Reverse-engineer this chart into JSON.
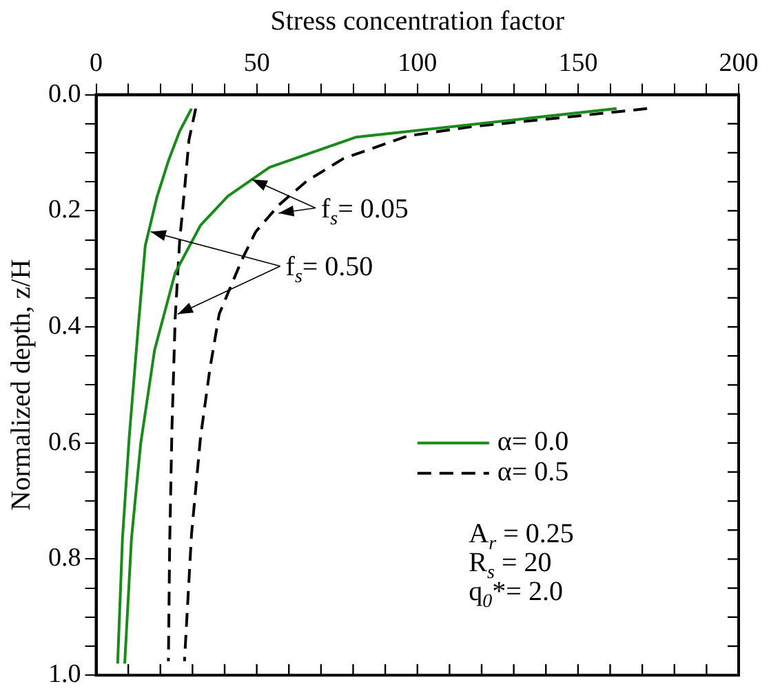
{
  "chart_data": {
    "type": "line",
    "xlabel": "Stress concentration factor",
    "ylabel": "Normalized depth, z/H",
    "xlim": [
      0,
      200
    ],
    "ylim": [
      1,
      0
    ],
    "xticks": [
      0,
      {
        "value": 10,
        "label": null
      },
      {
        "value": 20,
        "label": null
      },
      {
        "value": 30,
        "label": null
      },
      {
        "value": 40,
        "label": null
      },
      50,
      {
        "value": 60,
        "label": null
      },
      {
        "value": 70,
        "label": null
      },
      {
        "value": 80,
        "label": null
      },
      {
        "value": 90,
        "label": null
      },
      100,
      {
        "value": 110,
        "label": null
      },
      {
        "value": 120,
        "label": null
      },
      {
        "value": 130,
        "label": null
      },
      {
        "value": 140,
        "label": null
      },
      150,
      {
        "value": 160,
        "label": null
      },
      {
        "value": 170,
        "label": null
      },
      {
        "value": 180,
        "label": null
      },
      {
        "value": 190,
        "label": null
      },
      200
    ],
    "yticks": [
      {
        "value": 0,
        "label": "0.0"
      },
      {
        "value": 0.05,
        "label": null
      },
      {
        "value": 0.1,
        "label": null
      },
      {
        "value": 0.15,
        "label": null
      },
      {
        "value": 0.2,
        "label": "0.2"
      },
      {
        "value": 0.25,
        "label": null
      },
      {
        "value": 0.3,
        "label": null
      },
      {
        "value": 0.35,
        "label": null
      },
      {
        "value": 0.4,
        "label": "0.4"
      },
      {
        "value": 0.45,
        "label": null
      },
      {
        "value": 0.5,
        "label": null
      },
      {
        "value": 0.55,
        "label": null
      },
      {
        "value": 0.6,
        "label": "0.6"
      },
      {
        "value": 0.65,
        "label": null
      },
      {
        "value": 0.7,
        "label": null
      },
      {
        "value": 0.75,
        "label": null
      },
      {
        "value": 0.8,
        "label": "0.8"
      },
      {
        "value": 0.85,
        "label": null
      },
      {
        "value": 0.9,
        "label": null
      },
      {
        "value": 0.95,
        "label": null
      },
      {
        "value": 1,
        "label": "1.0"
      }
    ],
    "grid": false,
    "legend": "right",
    "marker": "none",
    "series": [
      {
        "name": "α= 0.0",
        "color": "#1a8a1a",
        "line_style": "solid",
        "x": [
          162,
          81,
          54,
          41,
          32.5,
          24.6,
          18.2,
          13.9,
          11,
          8.9
        ],
        "values": [
          0.024,
          0.073,
          0.125,
          0.175,
          0.225,
          0.307,
          0.44,
          0.6,
          0.765,
          0.98
        ]
      },
      {
        "color": "#1a8a1a",
        "line_style": "solid",
        "x": [
          29.7,
          26,
          22.5,
          18.9,
          15.3,
          13.2,
          10.3,
          8.2,
          6.7
        ],
        "values": [
          0.024,
          0.063,
          0.114,
          0.177,
          0.26,
          0.394,
          0.59,
          0.765,
          0.98
        ]
      },
      {
        "name": "α= 0.5",
        "color": "#000000",
        "line_style": "dashed",
        "x": [
          171.5,
          145.7,
          117,
          97,
          77,
          65.5,
          56.9,
          49.7,
          45.4,
          38.3,
          35.4,
          32.5,
          29.7,
          27.5
        ],
        "values": [
          0.024,
          0.039,
          0.055,
          0.071,
          0.11,
          0.149,
          0.19,
          0.236,
          0.284,
          0.378,
          0.473,
          0.59,
          0.757,
          0.976
        ]
      },
      {
        "color": "#000000",
        "line_style": "dashed",
        "x": [
          31,
          28.9,
          27.5,
          26,
          25.6,
          24.6,
          23.6,
          22.9,
          22.5
        ],
        "values": [
          0.024,
          0.078,
          0.165,
          0.252,
          0.29,
          0.386,
          0.575,
          0.772,
          0.976
        ]
      }
    ],
    "annotations": [
      {
        "text": "f$_{s}$= 0.05",
        "x": 48.5,
        "y": 0.146
      },
      {
        "text": "f$_{s}$= 0.50",
        "x": 17,
        "y": 0.236
      },
      "A$_{r}$ = 0.25",
      "R$_{s}$ = 20",
      "q$_{0}$*= 2.0"
    ]
  }
}
